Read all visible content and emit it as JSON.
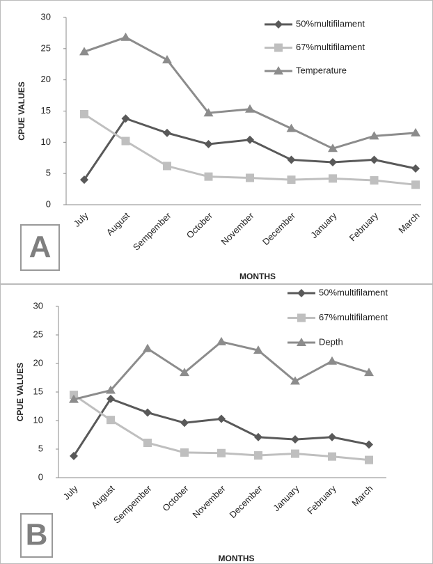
{
  "chart_data": [
    {
      "type": "line",
      "panel_label": "A",
      "y_label": "CPUE VALUES",
      "x_label": "MONTHS",
      "categories": [
        "July",
        "August",
        "Sempember",
        "October",
        "November",
        "December",
        "January",
        "February",
        "March"
      ],
      "ylim": [
        0,
        30
      ],
      "yticks": [
        0,
        5,
        10,
        15,
        20,
        25,
        30
      ],
      "series": [
        {
          "name": "50%multifilament",
          "color": "#595959",
          "marker": "diamond",
          "values": [
            4,
            13.8,
            11.5,
            9.7,
            10.4,
            7.2,
            6.8,
            7.2,
            5.8
          ]
        },
        {
          "name": "67%multifilament",
          "color": "#bfbfbf",
          "marker": "square",
          "values": [
            14.5,
            10.2,
            6.2,
            4.5,
            4.3,
            4.0,
            4.2,
            3.9,
            3.2
          ]
        },
        {
          "name": "Temperature",
          "color": "#8c8c8c",
          "marker": "triangle",
          "values": [
            24.5,
            26.8,
            23.2,
            14.7,
            15.3,
            12.2,
            9.0,
            11.0,
            11.5
          ]
        }
      ]
    },
    {
      "type": "line",
      "panel_label": "B",
      "y_label": "CPUE VALUES",
      "x_label": "MONTHS",
      "categories": [
        "July",
        "August",
        "Sempember",
        "October",
        "November",
        "December",
        "January",
        "February",
        "March"
      ],
      "ylim": [
        0,
        30
      ],
      "yticks": [
        0,
        5,
        10,
        15,
        20,
        25,
        30
      ],
      "series": [
        {
          "name": "50%multifilament",
          "color": "#595959",
          "marker": "diamond",
          "values": [
            3.8,
            13.8,
            11.4,
            9.6,
            10.3,
            7.1,
            6.7,
            7.1,
            5.8
          ]
        },
        {
          "name": "67%multifilament",
          "color": "#bfbfbf",
          "marker": "square",
          "values": [
            14.5,
            10.1,
            6.1,
            4.4,
            4.3,
            3.9,
            4.2,
            3.7,
            3.1
          ]
        },
        {
          "name": "Depth",
          "color": "#8c8c8c",
          "marker": "triangle",
          "values": [
            13.7,
            15.3,
            22.6,
            18.4,
            23.8,
            22.3,
            16.9,
            20.4,
            18.4
          ]
        }
      ]
    }
  ]
}
